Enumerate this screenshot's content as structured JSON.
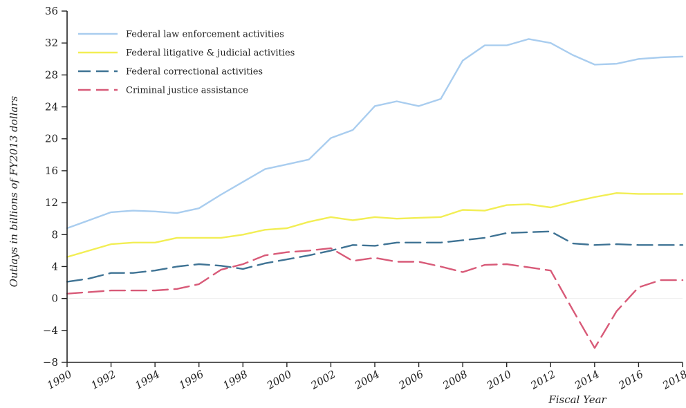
{
  "chart_data": {
    "type": "line",
    "title": "",
    "xlabel": "Fiscal Year",
    "ylabel": "Outlays in billions of FY2013 dollars",
    "xlim": [
      1990,
      2018
    ],
    "ylim": [
      -8,
      36
    ],
    "y_ticks": [
      -8,
      -4,
      0,
      4,
      8,
      12,
      16,
      20,
      24,
      28,
      32,
      36
    ],
    "x_ticks": [
      1990,
      1992,
      1994,
      1996,
      1998,
      2000,
      2002,
      2004,
      2006,
      2008,
      2010,
      2012,
      2014,
      2016,
      2018
    ],
    "legend_position": "top-left",
    "x": [
      1990,
      1991,
      1992,
      1993,
      1994,
      1995,
      1996,
      1997,
      1998,
      1999,
      2000,
      2001,
      2002,
      2003,
      2004,
      2005,
      2006,
      2007,
      2008,
      2009,
      2010,
      2011,
      2012,
      2013,
      2014,
      2015,
      2016,
      2017,
      2018
    ],
    "series": [
      {
        "name": "Federal law enforcement activities",
        "color": "#a9cdef",
        "dash": "solid",
        "values": [
          8.8,
          9.8,
          10.8,
          11.0,
          10.9,
          10.7,
          11.3,
          13.0,
          14.6,
          16.2,
          16.8,
          17.4,
          20.1,
          21.1,
          24.1,
          24.7,
          24.1,
          25.0,
          29.8,
          31.7,
          31.7,
          32.5,
          32.0,
          30.5,
          29.3,
          29.4,
          30.0,
          30.2,
          30.3
        ]
      },
      {
        "name": "Federal litigative & judicial activities",
        "color": "#f2ee54",
        "dash": "solid",
        "values": [
          5.2,
          6.0,
          6.8,
          7.0,
          7.0,
          7.6,
          7.6,
          7.6,
          8.0,
          8.6,
          8.8,
          9.6,
          10.2,
          9.8,
          10.2,
          10.0,
          10.1,
          10.2,
          11.1,
          11.0,
          11.7,
          11.8,
          11.4,
          12.1,
          12.7,
          13.2,
          13.1,
          13.1,
          13.1
        ]
      },
      {
        "name": "Federal correctional activities",
        "color": "#3f7394",
        "dash": "dashed",
        "values": [
          2.1,
          2.5,
          3.2,
          3.2,
          3.5,
          4.0,
          4.3,
          4.1,
          3.7,
          4.4,
          4.9,
          5.4,
          6.0,
          6.7,
          6.6,
          7.0,
          7.0,
          7.0,
          7.3,
          7.6,
          8.2,
          8.3,
          8.4,
          6.9,
          6.7,
          6.8,
          6.7,
          6.7,
          6.7
        ]
      },
      {
        "name": "Criminal justice assistance",
        "color": "#d85a78",
        "dash": "dashed",
        "values": [
          0.6,
          0.8,
          1.0,
          1.0,
          1.0,
          1.2,
          1.8,
          3.6,
          4.3,
          5.4,
          5.8,
          6.0,
          6.3,
          4.7,
          5.1,
          4.6,
          4.6,
          4.0,
          3.3,
          4.2,
          4.3,
          3.9,
          3.5,
          -1.4,
          -6.2,
          -1.6,
          1.4,
          2.3,
          2.3
        ]
      }
    ]
  }
}
